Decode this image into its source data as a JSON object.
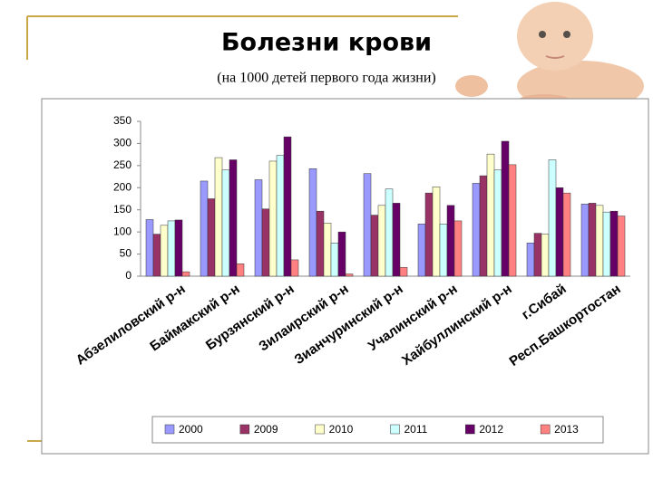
{
  "chart_data": {
    "type": "bar",
    "title": "Болезни крови",
    "subtitle": "(на 1000 детей первого года жизни)",
    "categories": [
      "Абзелиловский р-н",
      "Баймакский р-н",
      "Бурзянский р-н",
      "Зилаирский р-н",
      "Зианчуринский р-н",
      "Учалинский  р-н",
      "Хайбуллинский р-н",
      "г.Сибай",
      "Респ.Башкортостан"
    ],
    "series": [
      {
        "name": "2000",
        "color": "#9999ff",
        "values": [
          128,
          215,
          218,
          243,
          232,
          118,
          210,
          75,
          163
        ]
      },
      {
        "name": "2009",
        "color": "#993366",
        "values": [
          95,
          175,
          152,
          147,
          138,
          188,
          227,
          97,
          165
        ]
      },
      {
        "name": "2010",
        "color": "#ffffcc",
        "values": [
          115,
          268,
          260,
          120,
          160,
          202,
          276,
          95,
          160
        ]
      },
      {
        "name": "2011",
        "color": "#ccffff",
        "values": [
          125,
          240,
          273,
          75,
          197,
          118,
          240,
          263,
          145
        ]
      },
      {
        "name": "2012",
        "color": "#660066",
        "values": [
          127,
          263,
          315,
          100,
          165,
          160,
          305,
          200,
          147
        ]
      },
      {
        "name": "2013",
        "color": "#ff8080",
        "values": [
          10,
          28,
          37,
          5,
          20,
          125,
          252,
          188,
          136
        ]
      }
    ],
    "ylim": [
      0,
      350
    ],
    "yticks": [
      0,
      50,
      100,
      150,
      200,
      250,
      300,
      350
    ],
    "legend": "bottom"
  }
}
